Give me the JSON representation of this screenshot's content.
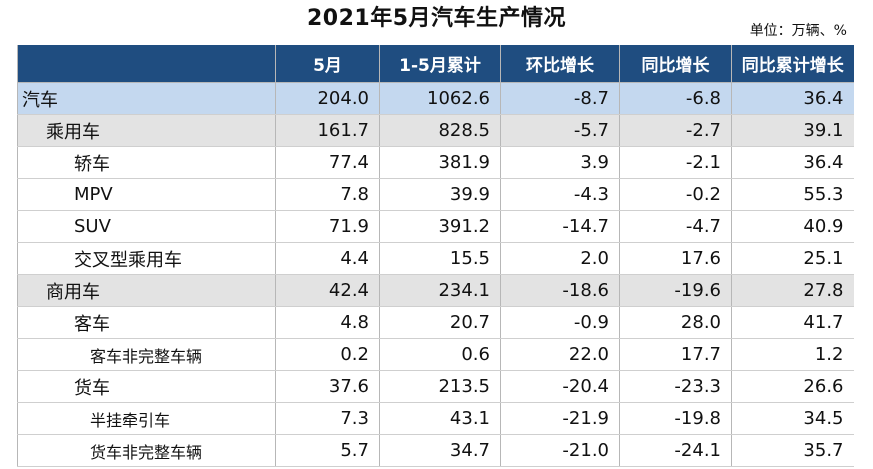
{
  "title": "2021年5月汽车生产情况",
  "unit": "单位：万辆、%",
  "table": {
    "headers": [
      "",
      "5月",
      "1-5月累计",
      "环比增长",
      "同比增长",
      "同比累计增长"
    ],
    "rows": [
      {
        "name": "汽车",
        "level": 0,
        "values": [
          "204.0",
          "1062.6",
          "-8.7",
          "-6.8",
          "36.4"
        ]
      },
      {
        "name": "乘用车",
        "level": 1,
        "values": [
          "161.7",
          "828.5",
          "-5.7",
          "-2.7",
          "39.1"
        ]
      },
      {
        "name": "轿车",
        "level": 2,
        "values": [
          "77.4",
          "381.9",
          "3.9",
          "-2.1",
          "36.4"
        ]
      },
      {
        "name": "MPV",
        "level": 2,
        "values": [
          "7.8",
          "39.9",
          "-4.3",
          "-0.2",
          "55.3"
        ]
      },
      {
        "name": "SUV",
        "level": 2,
        "values": [
          "71.9",
          "391.2",
          "-14.7",
          "-4.7",
          "40.9"
        ]
      },
      {
        "name": "交叉型乘用车",
        "level": 2,
        "values": [
          "4.4",
          "15.5",
          "2.0",
          "17.6",
          "25.1"
        ]
      },
      {
        "name": "商用车",
        "level": 1,
        "values": [
          "42.4",
          "234.1",
          "-18.6",
          "-19.6",
          "27.8"
        ]
      },
      {
        "name": "客车",
        "level": 2,
        "values": [
          "4.8",
          "20.7",
          "-0.9",
          "28.0",
          "41.7"
        ]
      },
      {
        "name": "客车非完整车辆",
        "level": 3,
        "values": [
          "0.2",
          "0.6",
          "22.0",
          "17.7",
          "1.2"
        ]
      },
      {
        "name": "货车",
        "level": 2,
        "values": [
          "37.6",
          "213.5",
          "-20.4",
          "-23.3",
          "26.6"
        ]
      },
      {
        "name": "半挂牵引车",
        "level": 3,
        "values": [
          "7.3",
          "43.1",
          "-21.9",
          "-19.8",
          "34.5"
        ]
      },
      {
        "name": "货车非完整车辆",
        "level": 3,
        "values": [
          "5.7",
          "34.7",
          "-21.0",
          "-24.1",
          "35.7"
        ]
      }
    ]
  }
}
